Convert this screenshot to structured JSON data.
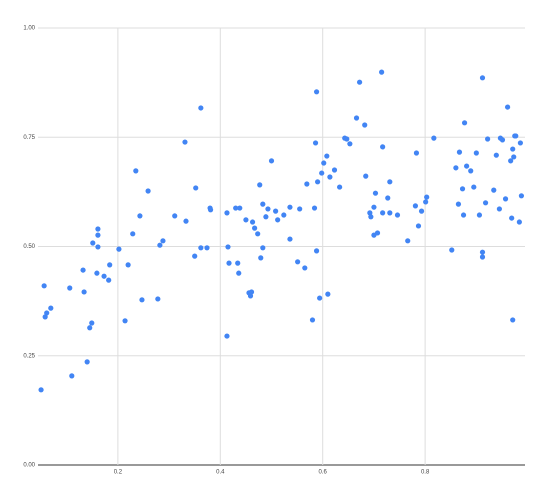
{
  "chart_data": {
    "type": "scatter",
    "color": "#4285f4",
    "grid": true,
    "xlim": [
      0.044,
      0.995
    ],
    "ylim": [
      0,
      1
    ],
    "xticks": [
      0.2,
      0.4,
      0.6,
      0.8
    ],
    "yticks": [
      {
        "value": 0,
        "label": "0.00"
      },
      0.25,
      {
        "value": 0.5,
        "label": "0.50"
      },
      0.75,
      {
        "value": 1,
        "label": "1.00"
      }
    ],
    "x": [
      0.05,
      0.056,
      0.058,
      0.061,
      0.069,
      0.106,
      0.11,
      0.132,
      0.134,
      0.14,
      0.145,
      0.149,
      0.151,
      0.159,
      0.161,
      0.161,
      0.161,
      0.173,
      0.182,
      0.184,
      0.202,
      0.214,
      0.22,
      0.229,
      0.235,
      0.243,
      0.247,
      0.259,
      0.278,
      0.282,
      0.288,
      0.311,
      0.331,
      0.333,
      0.35,
      0.352,
      0.362,
      0.362,
      0.374,
      0.38,
      0.381,
      0.413,
      0.413,
      0.415,
      0.417,
      0.43,
      0.434,
      0.436,
      0.438,
      0.45,
      0.456,
      0.459,
      0.461,
      0.463,
      0.467,
      0.473,
      0.477,
      0.479,
      0.483,
      0.483,
      0.489,
      0.493,
      0.5,
      0.508,
      0.512,
      0.524,
      0.536,
      0.536,
      0.551,
      0.555,
      0.565,
      0.569,
      0.58,
      0.584,
      0.588,
      0.588,
      0.586,
      0.59,
      0.594,
      0.598,
      0.602,
      0.608,
      0.61,
      0.614,
      0.623,
      0.633,
      0.643,
      0.647,
      0.653,
      0.666,
      0.672,
      0.682,
      0.684,
      0.692,
      0.694,
      0.7,
      0.7,
      0.703,
      0.707,
      0.715,
      0.717,
      0.717,
      0.727,
      0.731,
      0.731,
      0.746,
      0.766,
      0.781,
      0.783,
      0.787,
      0.793,
      0.801,
      0.803,
      0.817,
      0.852,
      0.86,
      0.865,
      0.867,
      0.873,
      0.875,
      0.877,
      0.881,
      0.889,
      0.895,
      0.9,
      0.906,
      0.912,
      0.912,
      0.912,
      0.918,
      0.922,
      0.934,
      0.939,
      0.945,
      0.951,
      0.957,
      0.961,
      0.967,
      0.973,
      0.969,
      0.971,
      0.975,
      0.977,
      0.984,
      0.986,
      0.988,
      0.971,
      0.947
    ],
    "y": [
      0.172,
      0.41,
      0.339,
      0.348,
      0.359,
      0.405,
      0.204,
      0.446,
      0.396,
      0.236,
      0.314,
      0.325,
      0.508,
      0.439,
      0.499,
      0.54,
      0.526,
      0.432,
      0.423,
      0.458,
      0.494,
      0.33,
      0.458,
      0.529,
      0.673,
      0.57,
      0.378,
      0.627,
      0.38,
      0.503,
      0.513,
      0.57,
      0.739,
      0.558,
      0.478,
      0.634,
      0.817,
      0.497,
      0.497,
      0.588,
      0.584,
      0.577,
      0.295,
      0.499,
      0.462,
      0.588,
      0.462,
      0.439,
      0.588,
      0.561,
      0.394,
      0.387,
      0.396,
      0.556,
      0.542,
      0.529,
      0.641,
      0.474,
      0.497,
      0.597,
      0.568,
      0.586,
      0.696,
      0.581,
      0.561,
      0.572,
      0.59,
      0.517,
      0.465,
      0.586,
      0.451,
      0.643,
      0.332,
      0.588,
      0.49,
      0.854,
      0.737,
      0.648,
      0.382,
      0.668,
      0.691,
      0.707,
      0.391,
      0.659,
      0.675,
      0.636,
      0.748,
      0.746,
      0.735,
      0.794,
      0.876,
      0.778,
      0.661,
      0.577,
      0.568,
      0.59,
      0.526,
      0.622,
      0.531,
      0.899,
      0.728,
      0.577,
      0.611,
      0.577,
      0.648,
      0.572,
      0.513,
      0.593,
      0.714,
      0.547,
      0.581,
      0.602,
      0.613,
      0.748,
      0.492,
      0.68,
      0.597,
      0.716,
      0.632,
      0.572,
      0.783,
      0.684,
      0.673,
      0.636,
      0.714,
      0.572,
      0.886,
      0.487,
      0.476,
      0.6,
      0.746,
      0.629,
      0.709,
      0.586,
      0.744,
      0.609,
      0.819,
      0.696,
      0.705,
      0.565,
      0.723,
      0.753,
      0.753,
      0.556,
      0.737,
      0.616,
      0.332,
      0.748
    ]
  }
}
